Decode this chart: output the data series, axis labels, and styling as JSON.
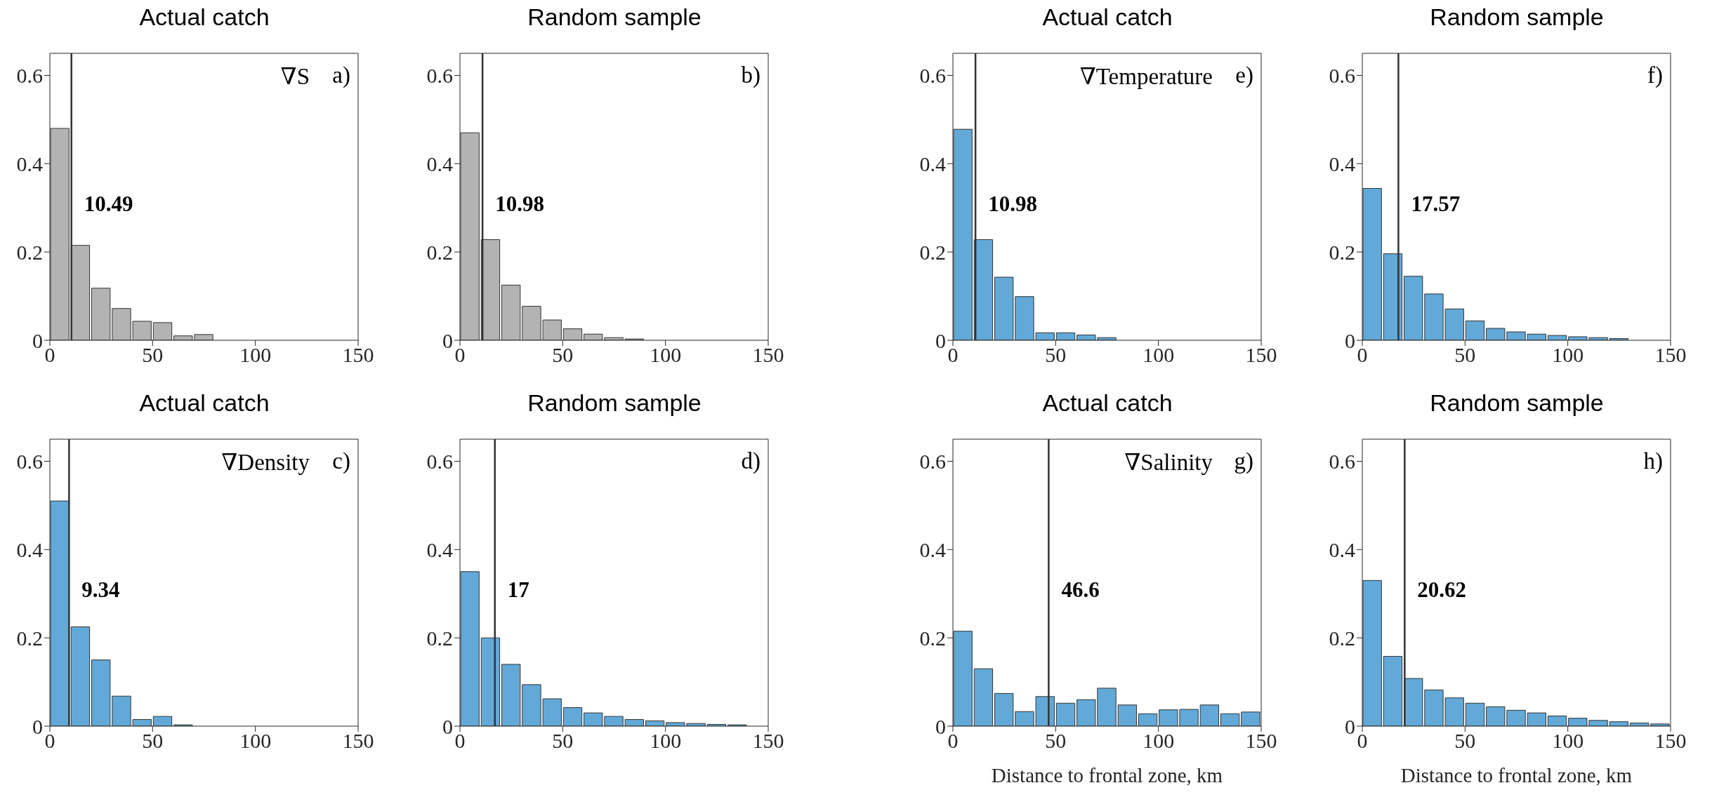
{
  "chart_data": [
    {
      "type": "histogram",
      "title": "Actual catch",
      "annotations": [
        "∇S",
        "a)"
      ],
      "color": "#b3b3b3",
      "bins": [
        0,
        10,
        20,
        30,
        40,
        50,
        60,
        70,
        80,
        90,
        100,
        110,
        120,
        130,
        140,
        150
      ],
      "values": [
        0.48,
        0.215,
        0.118,
        0.072,
        0.043,
        0.04,
        0.01,
        0.013,
        0,
        0,
        0,
        0,
        0,
        0,
        0
      ],
      "ref_lines": [
        {
          "axis": "x",
          "value": 10.49,
          "label": "10.49"
        }
      ],
      "xlim": [
        0,
        150
      ],
      "xticks": [
        0,
        50,
        100,
        150
      ],
      "ylim": [
        0,
        0.65
      ],
      "yticks": [
        0,
        0.2,
        0.4,
        0.6
      ]
    },
    {
      "type": "histogram",
      "title": "Random sample",
      "annotations": [
        "b)"
      ],
      "color": "#b3b3b3",
      "bins": [
        0,
        10,
        20,
        30,
        40,
        50,
        60,
        70,
        80,
        90,
        100,
        110,
        120,
        130,
        140,
        150
      ],
      "values": [
        0.47,
        0.228,
        0.125,
        0.077,
        0.046,
        0.026,
        0.014,
        0.006,
        0.003,
        null,
        0,
        0,
        0,
        0,
        0
      ],
      "ref_lines": [
        {
          "axis": "x",
          "value": 10.98,
          "label": "10.98"
        }
      ],
      "xlim": [
        0,
        150
      ],
      "xticks": [
        0,
        50,
        100,
        150
      ],
      "ylim": [
        0,
        0.65
      ],
      "yticks": [
        0,
        0.2,
        0.4,
        0.6
      ]
    },
    {
      "type": "histogram",
      "title": "Actual catch",
      "annotations": [
        "∇Density",
        "c)"
      ],
      "color": "#62a9d8",
      "bins": [
        0,
        10,
        20,
        30,
        40,
        50,
        60,
        70,
        80,
        90,
        100,
        110,
        120,
        130,
        140,
        150
      ],
      "values": [
        0.51,
        0.225,
        0.15,
        0.068,
        0.015,
        0.022,
        0.003,
        0,
        0,
        0,
        0,
        0,
        0,
        0,
        0
      ],
      "ref_lines": [
        {
          "axis": "x",
          "value": 9.34,
          "label": "9.34"
        }
      ],
      "xlim": [
        0,
        150
      ],
      "xticks": [
        0,
        50,
        100,
        150
      ],
      "ylim": [
        0,
        0.65
      ],
      "yticks": [
        0,
        0.2,
        0.4,
        0.6
      ]
    },
    {
      "type": "histogram",
      "title": "Random sample",
      "annotations": [
        "d)"
      ],
      "color": "#62a9d8",
      "bins": [
        0,
        10,
        20,
        30,
        40,
        50,
        60,
        70,
        80,
        90,
        100,
        110,
        120,
        130,
        140,
        150
      ],
      "values": [
        0.35,
        0.2,
        0.14,
        0.094,
        0.062,
        0.042,
        0.03,
        0.022,
        0.015,
        0.012,
        0.008,
        0.006,
        0.004,
        0.003,
        null
      ],
      "ref_lines": [
        {
          "axis": "x",
          "value": 17,
          "label": "17"
        }
      ],
      "xlim": [
        0,
        150
      ],
      "xticks": [
        0,
        50,
        100,
        150
      ],
      "ylim": [
        0,
        0.65
      ],
      "yticks": [
        0,
        0.2,
        0.4,
        0.6
      ]
    },
    {
      "type": "histogram",
      "title": "Actual catch",
      "annotations": [
        "∇Temperature",
        "e)"
      ],
      "color": "#62a9d8",
      "bins": [
        0,
        10,
        20,
        30,
        40,
        50,
        60,
        70,
        80,
        90,
        100,
        110,
        120,
        130,
        140,
        150
      ],
      "values": [
        0.478,
        0.228,
        0.143,
        0.099,
        0.017,
        0.017,
        0.012,
        0.006,
        0,
        0,
        0,
        0,
        0,
        0,
        0
      ],
      "ref_lines": [
        {
          "axis": "x",
          "value": 10.98,
          "label": "10.98"
        }
      ],
      "xlim": [
        0,
        150
      ],
      "xticks": [
        0,
        50,
        100,
        150
      ],
      "ylim": [
        0,
        0.65
      ],
      "yticks": [
        0,
        0.2,
        0.4,
        0.6
      ]
    },
    {
      "type": "histogram",
      "title": "Random sample",
      "annotations": [
        "f)"
      ],
      "color": "#62a9d8",
      "bins": [
        0,
        10,
        20,
        30,
        40,
        50,
        60,
        70,
        80,
        90,
        100,
        110,
        120,
        130,
        140,
        150
      ],
      "values": [
        0.344,
        0.196,
        0.145,
        0.105,
        0.071,
        0.044,
        0.027,
        0.019,
        0.014,
        0.011,
        0.008,
        0.006,
        0.004,
        null,
        null
      ],
      "ref_lines": [
        {
          "axis": "x",
          "value": 17.57,
          "label": "17.57"
        }
      ],
      "xlim": [
        0,
        150
      ],
      "xticks": [
        0,
        50,
        100,
        150
      ],
      "ylim": [
        0,
        0.65
      ],
      "yticks": [
        0,
        0.2,
        0.4,
        0.6
      ]
    },
    {
      "type": "histogram",
      "title": "Actual catch",
      "xlabel": "Distance to frontal zone, km",
      "annotations": [
        "∇Salinity",
        "g)"
      ],
      "color": "#62a9d8",
      "bins": [
        0,
        10,
        20,
        30,
        40,
        50,
        60,
        70,
        80,
        90,
        100,
        110,
        120,
        130,
        140,
        150
      ],
      "values": [
        0.215,
        0.13,
        0.074,
        0.033,
        0.067,
        0.052,
        0.06,
        0.086,
        0.048,
        0.028,
        0.037,
        0.038,
        0.048,
        0.028,
        0.032
      ],
      "ref_lines": [
        {
          "axis": "x",
          "value": 46.6,
          "label": "46.6"
        }
      ],
      "xlim": [
        0,
        150
      ],
      "xticks": [
        0,
        50,
        100,
        150
      ],
      "ylim": [
        0,
        0.65
      ],
      "yticks": [
        0,
        0.2,
        0.4,
        0.6
      ]
    },
    {
      "type": "histogram",
      "title": "Random sample",
      "xlabel": "Distance to frontal zone, km",
      "annotations": [
        "h)"
      ],
      "color": "#62a9d8",
      "bins": [
        0,
        10,
        20,
        30,
        40,
        50,
        60,
        70,
        80,
        90,
        100,
        110,
        120,
        130,
        140,
        150
      ],
      "values": [
        0.33,
        0.158,
        0.108,
        0.082,
        0.064,
        0.052,
        0.044,
        0.036,
        0.03,
        0.023,
        0.018,
        0.013,
        0.01,
        0.007,
        0.005
      ],
      "ref_lines": [
        {
          "axis": "x",
          "value": 20.62,
          "label": "20.62"
        }
      ],
      "xlim": [
        0,
        150
      ],
      "xticks": [
        0,
        50,
        100,
        150
      ],
      "ylim": [
        0,
        0.65
      ],
      "yticks": [
        0,
        0.2,
        0.4,
        0.6
      ]
    }
  ]
}
